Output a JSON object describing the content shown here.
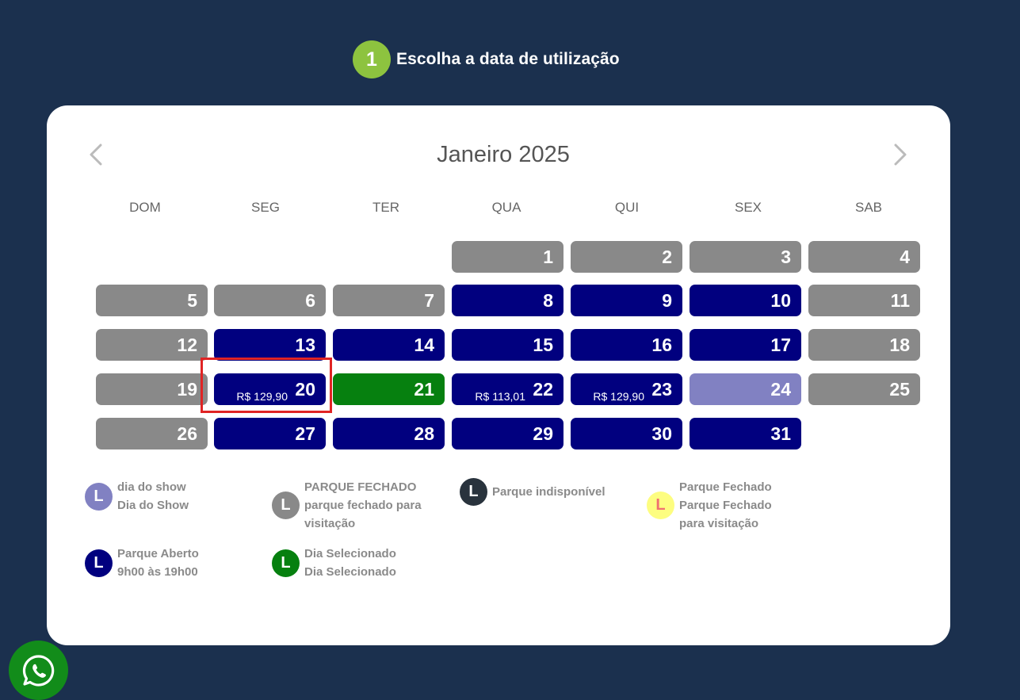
{
  "step": {
    "number": "1",
    "title": "Escolha a data de utilização"
  },
  "calendar": {
    "month_title": "Janeiro 2025",
    "weekdays": [
      "DOM",
      "SEG",
      "TER",
      "QUA",
      "QUI",
      "SEX",
      "SAB"
    ],
    "days": [
      {
        "n": "1",
        "status": "closed"
      },
      {
        "n": "2",
        "status": "closed"
      },
      {
        "n": "3",
        "status": "closed"
      },
      {
        "n": "4",
        "status": "closed"
      },
      {
        "n": "5",
        "status": "closed"
      },
      {
        "n": "6",
        "status": "closed"
      },
      {
        "n": "7",
        "status": "closed"
      },
      {
        "n": "8",
        "status": "open"
      },
      {
        "n": "9",
        "status": "open"
      },
      {
        "n": "10",
        "status": "open"
      },
      {
        "n": "11",
        "status": "closed"
      },
      {
        "n": "12",
        "status": "closed"
      },
      {
        "n": "13",
        "status": "open"
      },
      {
        "n": "14",
        "status": "open"
      },
      {
        "n": "15",
        "status": "open"
      },
      {
        "n": "16",
        "status": "open"
      },
      {
        "n": "17",
        "status": "open"
      },
      {
        "n": "18",
        "status": "closed"
      },
      {
        "n": "19",
        "status": "closed"
      },
      {
        "n": "20",
        "status": "open",
        "price": "R$ 129,90"
      },
      {
        "n": "21",
        "status": "selected"
      },
      {
        "n": "22",
        "status": "open",
        "price": "R$ 113,01"
      },
      {
        "n": "23",
        "status": "open",
        "price": "R$ 129,90"
      },
      {
        "n": "24",
        "status": "show"
      },
      {
        "n": "25",
        "status": "closed"
      },
      {
        "n": "26",
        "status": "closed"
      },
      {
        "n": "27",
        "status": "open"
      },
      {
        "n": "28",
        "status": "open"
      },
      {
        "n": "29",
        "status": "open"
      },
      {
        "n": "30",
        "status": "open"
      },
      {
        "n": "31",
        "status": "open"
      }
    ]
  },
  "legend": [
    {
      "letter": "L",
      "kind": "show",
      "lines": [
        "dia do show",
        "Dia do Show"
      ]
    },
    {
      "letter": "L",
      "kind": "closed",
      "lines": [
        "PARQUE FECHADO",
        "parque fechado para",
        "visitação"
      ]
    },
    {
      "letter": "L",
      "kind": "unavailable",
      "lines": [
        "Parque indisponível"
      ]
    },
    {
      "letter": "L",
      "kind": "closed-yellow",
      "lines": [
        "Parque Fechado",
        "Parque Fechado",
        "para visitação"
      ]
    },
    {
      "letter": "L",
      "kind": "open",
      "lines": [
        "Parque Aberto",
        "9h00 às 19h00"
      ]
    },
    {
      "letter": "L",
      "kind": "selected",
      "lines": [
        "Dia Selecionado",
        "Dia Selecionado"
      ]
    }
  ],
  "colors": {
    "closed": "#898989",
    "open": "#01007f",
    "selected": "#06800f",
    "show": "#8181c2",
    "unavailable": "#29333d",
    "closed-yellow": "#fdfd80",
    "closed-yellow-text": "#f07070"
  },
  "icons": {
    "prev": "chevron-left-icon",
    "next": "chevron-right-icon",
    "whatsapp": "whatsapp-icon"
  }
}
